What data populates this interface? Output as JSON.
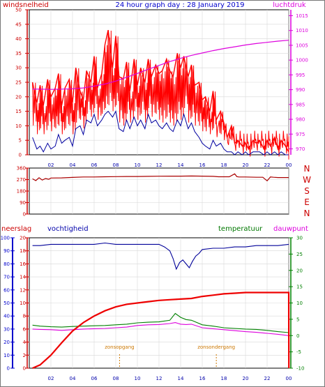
{
  "title": "24 hour graph day : 28 January 2019",
  "colors": {
    "wind": "#ff0000",
    "gust": "#ff0000",
    "avg_wind": "#0000a0",
    "pressure": "#dd00dd",
    "direction": "#aa0000",
    "rain": "#ee0000",
    "humidity": "#000099",
    "temperature": "#008000",
    "dewpoint": "#dd00dd",
    "sun": "#cc7700",
    "axis_red": "#cc0000",
    "axis_blue": "#0000cc"
  },
  "x_ticks": [
    "02",
    "04",
    "06",
    "08",
    "10",
    "12",
    "14",
    "16",
    "18",
    "20",
    "22",
    "00"
  ],
  "chart_data": [
    {
      "type": "line",
      "left_label": "windsnelheid",
      "right_label": "luchtdruk",
      "left_ticks": [
        "50",
        "45",
        "40",
        "35",
        "30",
        "25",
        "20",
        "15",
        "10",
        "5",
        "0"
      ],
      "right_ticks": [
        "1015",
        "1010",
        "1005",
        "1000",
        "995",
        "990",
        "985",
        "980",
        "975",
        "970"
      ],
      "ylim": [
        0,
        50
      ],
      "y2lim": [
        968,
        1017
      ],
      "series": [
        {
          "kind": "wind_gust",
          "x": [
            0.3,
            0.7,
            1.0,
            1.3,
            1.7,
            2.0,
            2.4,
            2.7,
            3.0,
            3.3,
            3.7,
            4.0,
            4.3,
            4.7,
            5.0,
            5.3,
            5.7,
            6.0,
            6.3,
            6.7,
            7.0,
            7.3,
            7.7,
            8.0,
            8.3,
            8.7,
            9.0,
            9.3,
            9.7,
            10.0,
            10.3,
            10.7,
            11.0,
            11.3,
            11.7,
            12.0,
            12.3,
            12.7,
            13.0,
            13.3,
            13.7,
            14.0,
            14.3,
            14.7,
            15.0,
            15.3,
            15.7,
            16.0,
            16.3,
            16.7,
            17.0,
            17.3,
            17.7,
            18.0,
            18.3,
            18.7,
            19.0,
            19.3,
            19.7,
            20.0,
            20.3,
            20.7,
            21.0,
            21.3,
            21.7,
            22.0,
            22.3,
            22.7,
            23.0,
            23.3,
            23.7,
            24.0
          ],
          "values": [
            25,
            18,
            24,
            17,
            26,
            20,
            23,
            28,
            17,
            23,
            26,
            18,
            30,
            22,
            19,
            29,
            25,
            34,
            23,
            28,
            38,
            43,
            30,
            41,
            27,
            26,
            32,
            22,
            33,
            24,
            30,
            25,
            33,
            27,
            31,
            28,
            29,
            33,
            29,
            27,
            35,
            30,
            34,
            27,
            31,
            24,
            25,
            19,
            20,
            15,
            22,
            12,
            15,
            11,
            6,
            10,
            4,
            5,
            3,
            4,
            2,
            5,
            4,
            5,
            2,
            5,
            3,
            6,
            2,
            5,
            3,
            1
          ]
        },
        {
          "kind": "wind_avg",
          "x": [
            0.3,
            0.7,
            1.0,
            1.3,
            1.7,
            2.0,
            2.4,
            2.7,
            3.0,
            3.3,
            3.7,
            4.0,
            4.3,
            4.7,
            5.0,
            5.3,
            5.7,
            6.0,
            6.3,
            6.7,
            7.0,
            7.3,
            7.7,
            8.0,
            8.3,
            8.7,
            9.0,
            9.3,
            9.7,
            10.0,
            10.3,
            10.7,
            11.0,
            11.3,
            11.7,
            12.0,
            12.3,
            12.7,
            13.0,
            13.3,
            13.7,
            14.0,
            14.3,
            14.7,
            15.0,
            15.3,
            15.7,
            16.0,
            16.3,
            16.7,
            17.0,
            17.3,
            17.7,
            18.0,
            18.3,
            18.7,
            19.0,
            19.3,
            19.7,
            20.0,
            20.3,
            20.7,
            21.0,
            21.3,
            21.7,
            22.0,
            22.3,
            22.7,
            23.0,
            23.3,
            23.7,
            24.0
          ],
          "values": [
            6,
            2,
            3,
            1,
            4,
            2,
            3,
            7,
            4,
            5,
            6,
            3,
            9,
            10,
            7,
            12,
            11,
            14,
            10,
            12,
            14,
            15,
            13,
            15,
            9,
            8,
            12,
            9,
            13,
            10,
            12,
            9,
            14,
            11,
            12,
            10,
            9,
            11,
            9,
            8,
            12,
            10,
            14,
            9,
            11,
            8,
            6,
            4,
            3,
            2,
            5,
            3,
            4,
            2,
            1,
            1,
            0,
            1,
            0,
            1,
            0,
            1,
            1,
            1,
            0,
            1,
            0,
            1,
            0,
            1,
            0,
            0
          ]
        },
        {
          "kind": "pressure",
          "axis": "right",
          "x": [
            0.3,
            1,
            2,
            3,
            4,
            5,
            6,
            7,
            8,
            9,
            10,
            11,
            12,
            13,
            14,
            15,
            16,
            17,
            18,
            19,
            20,
            21,
            22,
            23,
            24
          ],
          "values": [
            990.2,
            990.2,
            990.1,
            990.2,
            990.3,
            990.6,
            991.2,
            991.9,
            992.9,
            994.2,
            995.5,
            996.9,
            998.2,
            999.5,
            1000.6,
            1001.6,
            1002.4,
            1003.2,
            1003.9,
            1004.5,
            1005.1,
            1005.6,
            1006.0,
            1006.4,
            1006.7
          ]
        }
      ]
    },
    {
      "type": "line",
      "left_ticks": [
        "360",
        "270",
        "180",
        "90",
        "0"
      ],
      "right_ticks": [
        "N",
        "W",
        "S",
        "E",
        "N"
      ],
      "ylim": [
        0,
        360
      ],
      "series": [
        {
          "kind": "wind_direction",
          "x": [
            0.3,
            0.6,
            0.9,
            1.2,
            1.5,
            1.8,
            2.0,
            3,
            4,
            5,
            6,
            7,
            8,
            9,
            10,
            11,
            12,
            13,
            14,
            15,
            16,
            17,
            17.5,
            18,
            18.5,
            19.0,
            19.2,
            19.4,
            20,
            21,
            21.6,
            22.0,
            22.3,
            22.6,
            23,
            24
          ],
          "values": [
            276,
            262,
            284,
            266,
            278,
            272,
            282,
            283,
            287,
            290,
            290,
            292,
            293,
            294,
            294,
            295,
            296,
            297,
            297,
            298,
            297,
            295,
            292,
            292,
            292,
            315,
            293,
            290,
            290,
            288,
            288,
            260,
            290,
            288,
            286,
            286
          ]
        }
      ]
    },
    {
      "type": "line",
      "left_label": "neerslag",
      "humidity_label": "vochtigheid",
      "temperature_label": "temperatuur",
      "dewpoint_label": "dauwpunt",
      "left_ticks": [
        "20",
        "18",
        "16",
        "14",
        "12",
        "10",
        "8",
        "6",
        "4",
        "2",
        "0"
      ],
      "humidity_ticks": [
        "100",
        "90",
        "80",
        "70",
        "60",
        "50",
        "40",
        "30",
        "20",
        "10",
        "0"
      ],
      "right_ticks": [
        "30",
        "25",
        "20",
        "15",
        "10",
        "5",
        "0",
        "-5",
        "-10"
      ],
      "ylim": [
        0,
        20
      ],
      "y2lim": [
        -10,
        30
      ],
      "humidity_lim": [
        0,
        100
      ],
      "sunrise_label": "zonsopgang",
      "sunset_label": "zonsondergang",
      "sunrise_hour": 8.35,
      "sunset_hour": 17.3,
      "series": [
        {
          "kind": "rain",
          "x": [
            0.3,
            1,
            2,
            3,
            4,
            5,
            6,
            7,
            8,
            9,
            10,
            11,
            12,
            13,
            14,
            15,
            16,
            17,
            18,
            19,
            20,
            21,
            22,
            23,
            24,
            24.01
          ],
          "values": [
            0,
            0.5,
            2,
            3.9,
            5.7,
            7.0,
            8.0,
            8.8,
            9.4,
            9.8,
            10.0,
            10.2,
            10.4,
            10.5,
            10.6,
            10.7,
            11.0,
            11.2,
            11.4,
            11.5,
            11.6,
            11.6,
            11.6,
            11.6,
            11.6,
            0
          ]
        },
        {
          "kind": "humidity",
          "axis": "humidity",
          "x": [
            0.3,
            1,
            2,
            3,
            4,
            5,
            6,
            7,
            8,
            9,
            10,
            11,
            12,
            12.5,
            13,
            13.3,
            13.6,
            13.9,
            14.2,
            14.5,
            14.8,
            15.1,
            15.4,
            15.7,
            16,
            17,
            18,
            19,
            20,
            21,
            22,
            23,
            24
          ],
          "values": [
            94,
            94,
            95,
            95,
            95,
            95,
            95,
            96,
            95,
            95,
            95,
            95,
            95,
            93,
            90,
            84,
            76,
            81,
            83,
            80,
            77,
            82,
            86,
            88,
            91,
            92,
            92,
            93,
            93,
            94,
            94,
            94,
            95
          ]
        },
        {
          "kind": "temperature",
          "axis": "right",
          "x": [
            0.3,
            1,
            2,
            3,
            4,
            5,
            6,
            7,
            8,
            9,
            10,
            11,
            12,
            13,
            13.5,
            14,
            14.5,
            15,
            16,
            17,
            18,
            19,
            20,
            21,
            22,
            23,
            24
          ],
          "values": [
            3.2,
            2.9,
            2.7,
            2.6,
            2.8,
            2.9,
            3.0,
            3.1,
            3.3,
            3.5,
            3.9,
            4.1,
            4.2,
            4.7,
            6.8,
            5.6,
            4.9,
            4.7,
            3.3,
            2.9,
            2.4,
            2.2,
            2.0,
            1.9,
            1.6,
            1.2,
            0.9
          ]
        },
        {
          "kind": "dewpoint",
          "axis": "right",
          "x": [
            0.3,
            1,
            2,
            3,
            4,
            5,
            6,
            7,
            8,
            9,
            10,
            11,
            12,
            13,
            13.5,
            14,
            14.5,
            15,
            16,
            17,
            18,
            19,
            20,
            21,
            22,
            23,
            24
          ],
          "values": [
            2.0,
            1.9,
            1.8,
            1.6,
            1.8,
            2.0,
            2.1,
            2.2,
            2.4,
            2.6,
            3.1,
            3.3,
            3.4,
            3.7,
            4.0,
            3.5,
            3.4,
            3.5,
            2.4,
            2.1,
            1.8,
            1.5,
            1.2,
            1.0,
            0.7,
            0.4,
            0.0
          ]
        }
      ]
    }
  ]
}
